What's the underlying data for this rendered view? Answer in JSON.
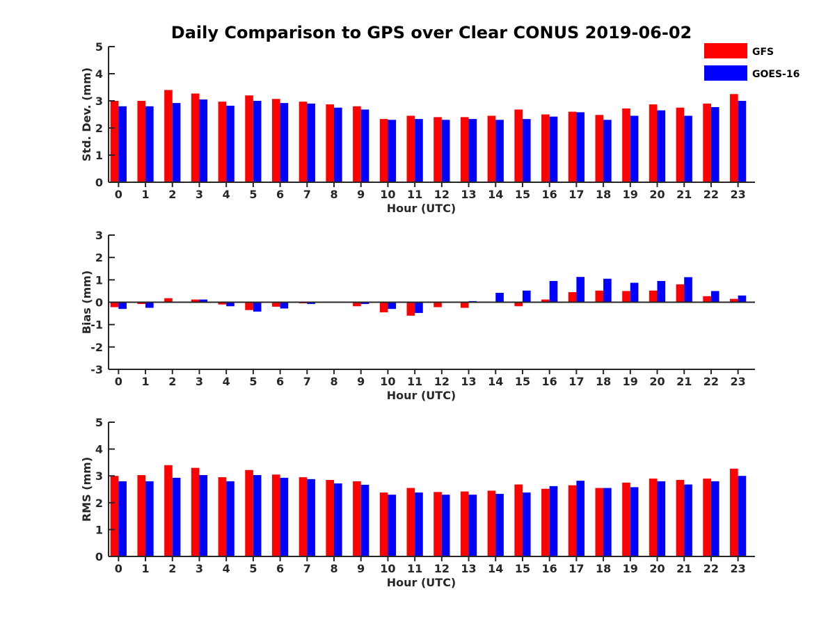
{
  "title": "Daily Comparison to GPS over Clear CONUS 2019-06-02",
  "colors": {
    "GFS": "#ff0000",
    "GOES-16": "#0000ff",
    "axis": "#262626"
  },
  "legend": {
    "placement": "top-right",
    "items": [
      {
        "label": "GFS",
        "color": "#ff0000"
      },
      {
        "label": "GOES-16",
        "color": "#0000ff"
      }
    ]
  },
  "chart_data": [
    {
      "type": "bar",
      "title": "Daily Comparison to GPS over Clear CONUS 2019-06-02",
      "xlabel": "Hour (UTC)",
      "ylabel": "Std. Dev. (mm)",
      "ylim": [
        0,
        5
      ],
      "yticks": [
        "0",
        "1",
        "2",
        "3",
        "4",
        "5"
      ],
      "categories": [
        "0",
        "1",
        "2",
        "3",
        "4",
        "5",
        "6",
        "7",
        "8",
        "9",
        "10",
        "11",
        "12",
        "13",
        "14",
        "15",
        "16",
        "17",
        "18",
        "19",
        "20",
        "21",
        "22",
        "23"
      ],
      "series": [
        {
          "name": "GFS",
          "values": [
            3.0,
            3.0,
            3.4,
            3.27,
            2.97,
            3.2,
            3.07,
            2.97,
            2.87,
            2.8,
            2.33,
            2.45,
            2.4,
            2.4,
            2.45,
            2.68,
            2.5,
            2.6,
            2.48,
            2.72,
            2.87,
            2.75,
            2.9,
            3.25
          ]
        },
        {
          "name": "GOES-16",
          "values": [
            2.8,
            2.8,
            2.92,
            3.05,
            2.82,
            3.0,
            2.92,
            2.9,
            2.75,
            2.68,
            2.3,
            2.33,
            2.3,
            2.33,
            2.3,
            2.33,
            2.42,
            2.58,
            2.3,
            2.45,
            2.65,
            2.45,
            2.77,
            3.0
          ]
        }
      ]
    },
    {
      "type": "bar",
      "xlabel": "Hour (UTC)",
      "ylabel": "Bias (mm)",
      "ylim": [
        -3,
        3
      ],
      "yticks": [
        "-3",
        "-2",
        "-1",
        "0",
        "1",
        "2",
        "3"
      ],
      "categories": [
        "0",
        "1",
        "2",
        "3",
        "4",
        "5",
        "6",
        "7",
        "8",
        "9",
        "10",
        "11",
        "12",
        "13",
        "14",
        "15",
        "16",
        "17",
        "18",
        "19",
        "20",
        "21",
        "22",
        "23"
      ],
      "series": [
        {
          "name": "GFS",
          "values": [
            -0.22,
            -0.08,
            0.18,
            0.12,
            -0.1,
            -0.35,
            -0.2,
            -0.05,
            0.02,
            -0.18,
            -0.45,
            -0.6,
            -0.22,
            -0.25,
            -0.03,
            -0.18,
            0.12,
            0.45,
            0.52,
            0.5,
            0.52,
            0.8,
            0.27,
            0.15
          ]
        },
        {
          "name": "GOES-16",
          "values": [
            -0.3,
            -0.25,
            0.02,
            0.12,
            -0.18,
            -0.42,
            -0.28,
            -0.08,
            0.03,
            -0.08,
            -0.3,
            -0.48,
            -0.02,
            0.05,
            0.42,
            0.52,
            0.95,
            1.13,
            1.05,
            0.87,
            0.95,
            1.12,
            0.5,
            0.3
          ]
        }
      ]
    },
    {
      "type": "bar",
      "xlabel": "Hour (UTC)",
      "ylabel": "RMS (mm)",
      "ylim": [
        0,
        5
      ],
      "yticks": [
        "0",
        "1",
        "2",
        "3",
        "4",
        "5"
      ],
      "categories": [
        "0",
        "1",
        "2",
        "3",
        "4",
        "5",
        "6",
        "7",
        "8",
        "9",
        "10",
        "11",
        "12",
        "13",
        "14",
        "15",
        "16",
        "17",
        "18",
        "19",
        "20",
        "21",
        "22",
        "23"
      ],
      "series": [
        {
          "name": "GFS",
          "values": [
            3.0,
            3.03,
            3.4,
            3.3,
            2.95,
            3.22,
            3.05,
            2.95,
            2.85,
            2.8,
            2.38,
            2.55,
            2.4,
            2.42,
            2.45,
            2.68,
            2.52,
            2.65,
            2.55,
            2.75,
            2.9,
            2.85,
            2.9,
            3.27
          ]
        },
        {
          "name": "GOES-16",
          "values": [
            2.8,
            2.8,
            2.93,
            3.03,
            2.8,
            3.03,
            2.93,
            2.88,
            2.72,
            2.67,
            2.3,
            2.38,
            2.3,
            2.3,
            2.33,
            2.38,
            2.62,
            2.82,
            2.55,
            2.58,
            2.8,
            2.68,
            2.8,
            3.0
          ]
        }
      ]
    }
  ]
}
